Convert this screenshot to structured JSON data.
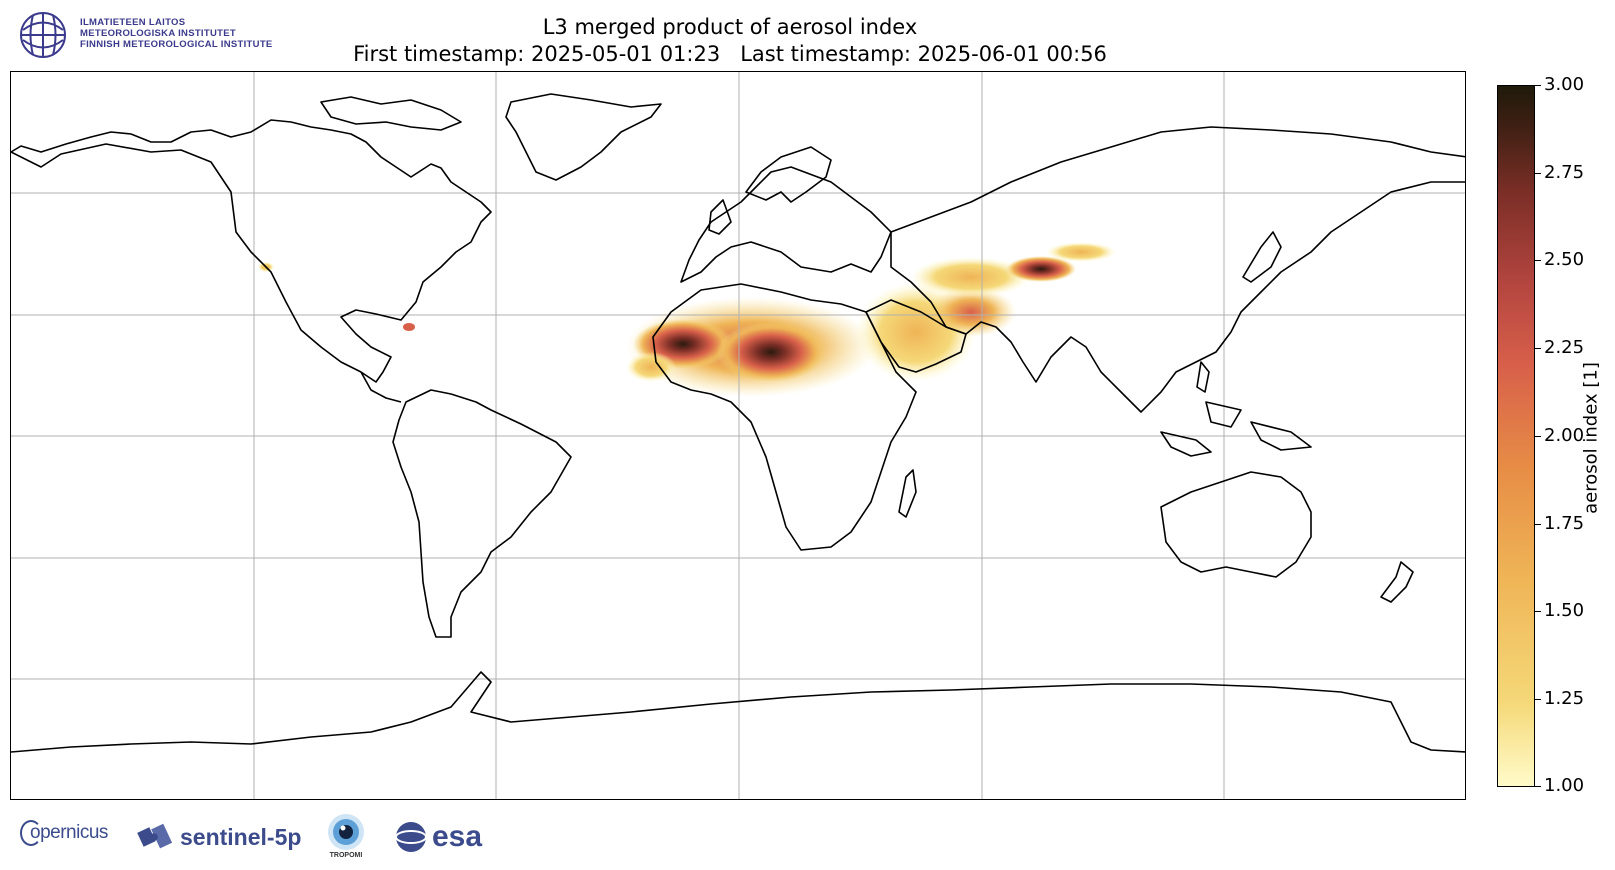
{
  "header": {
    "logo_lines": [
      "ILMATIETEEN LAITOS",
      "METEOROLOGISKA INSTITUTET",
      "FINNISH METEOROLOGICAL INSTITUTE"
    ],
    "title_line1": "L3 merged product of aerosol index",
    "title_line2": "First timestamp: 2025-05-01 01:23   Last timestamp: 2025-06-01 00:56"
  },
  "map": {
    "projection": "equirectangular",
    "gridlines": true,
    "grid_lon_step_deg": 60,
    "grid_lat_step_deg": 30,
    "coastline_color": "#000000",
    "hotspots": [
      {
        "region": "Sahara / West Africa",
        "level": "high"
      },
      {
        "region": "Sahel",
        "level": "high"
      },
      {
        "region": "Arabian Peninsula",
        "level": "moderate"
      },
      {
        "region": "Iran / Afghanistan / Pakistan",
        "level": "moderate"
      },
      {
        "region": "Taklamakan Desert",
        "level": "high"
      }
    ]
  },
  "colorbar": {
    "label": "aerosol index [1]",
    "min": 1.0,
    "max": 3.0,
    "ticks": [
      "1.00",
      "1.25",
      "1.50",
      "1.75",
      "2.00",
      "2.25",
      "2.50",
      "2.75",
      "3.00"
    ],
    "colormap": [
      "#fffbc9",
      "#f5d878",
      "#efb456",
      "#e78e46",
      "#d8604a",
      "#b3453f",
      "#7a2e26",
      "#3a1f12",
      "#1f1a0b"
    ]
  },
  "footer": {
    "copernicus": "opernicus",
    "sentinel": "sentinel-5p",
    "tropomi": "TROPOMI",
    "esa": "esa"
  }
}
